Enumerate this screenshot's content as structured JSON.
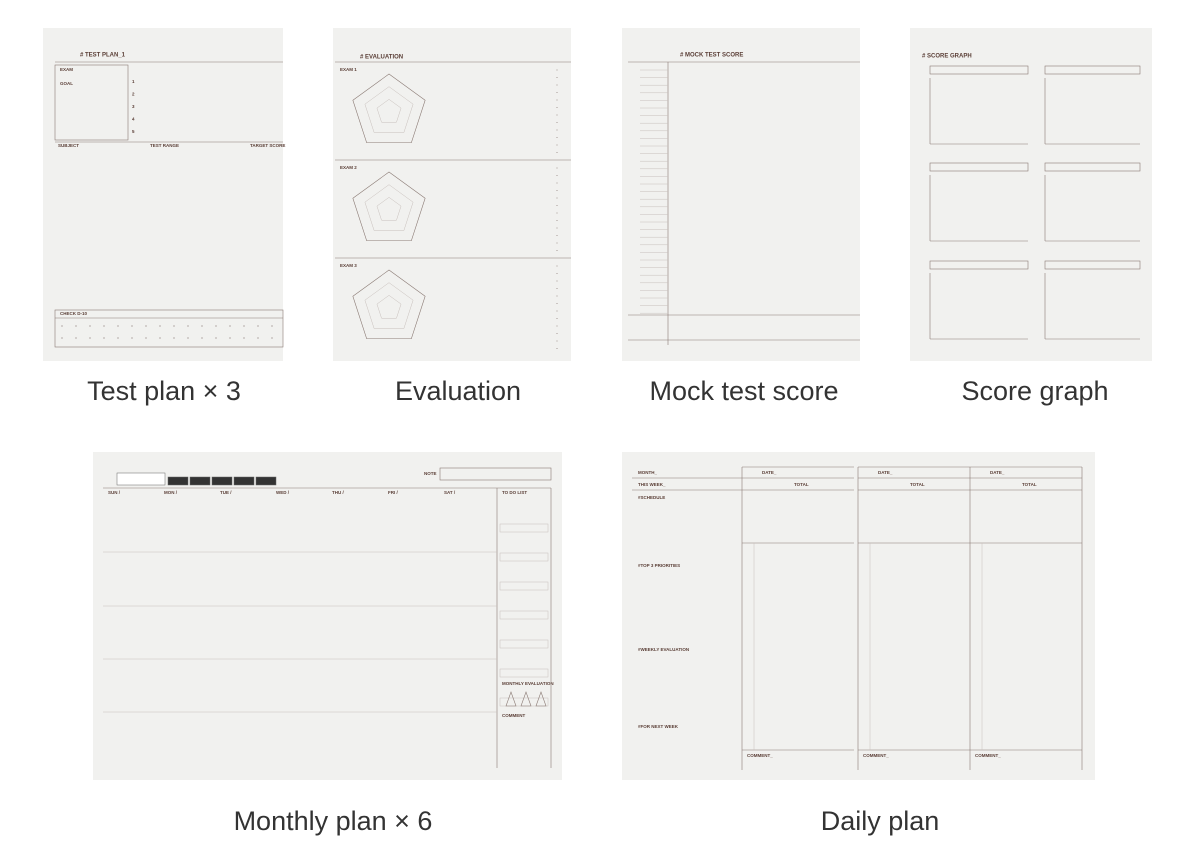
{
  "captions": [
    "Test plan × 3",
    "Evaluation",
    "Mock test score",
    "Score graph",
    "Monthly plan × 6",
    "Daily plan"
  ],
  "test_plan": {
    "title": "# TEST PLAN_1",
    "exam": "EXAM",
    "goal": "GOAL",
    "goal_numbers": [
      "1",
      "2",
      "3",
      "4",
      "5"
    ],
    "columns": [
      "SUBJECT",
      "TEST RANGE",
      "TARGET SCORE"
    ],
    "check": "CHECK D-10"
  },
  "evaluation": {
    "title": "# EVALUATION",
    "exams": [
      "EXAM 1",
      "EXAM 2",
      "EXAM 3"
    ]
  },
  "mock_test": {
    "title": "# MOCK TEST SCORE"
  },
  "score_graph": {
    "title": "# SCORE GRAPH"
  },
  "monthly_plan": {
    "days": [
      "SUN /",
      "MON /",
      "TUE /",
      "WED /",
      "THU /",
      "FRI /",
      "SAT /"
    ],
    "todo": "TO DO LIST",
    "evaluation": "MONTHLY EVALUATION",
    "comment": "COMMENT",
    "note": "NOTE"
  },
  "daily_plan": {
    "month": "MONTH_",
    "week": "THIS WEEK_",
    "sections": [
      "#SCHEDULE",
      "#TOP 3 PRIORITIES",
      "#WEEKLY EVALUATION",
      "#FOR NEXT WEEK"
    ],
    "date": "DATE_",
    "total": "TOTAL",
    "comment": "COMMENT_"
  }
}
